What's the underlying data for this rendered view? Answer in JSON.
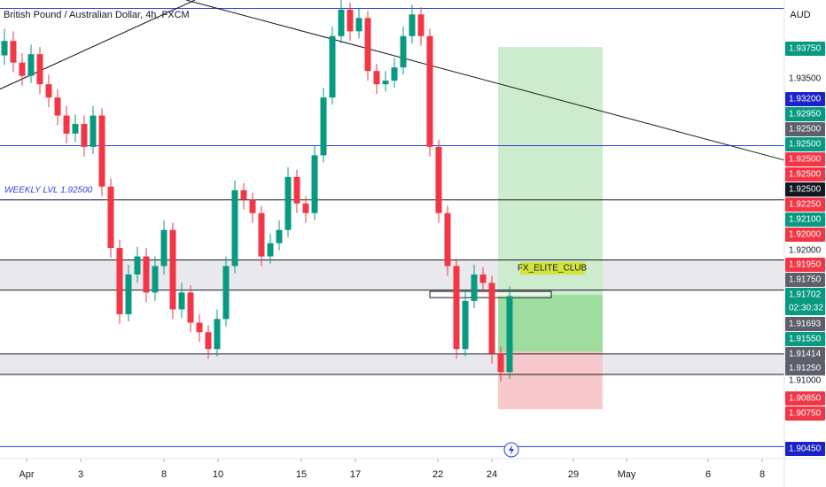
{
  "chart_data": {
    "type": "candlestick",
    "title": "British Pound / Australian Dollar, 4h, FXCM",
    "currency": "AUD",
    "up_color": "#089981",
    "down_color": "#f23645",
    "xlim": [
      -0.5,
      88
    ],
    "ylim": [
      1.9035,
      1.9416
    ],
    "xticks": [
      {
        "value": 2.5,
        "label": "Apr"
      },
      {
        "value": 8.6,
        "label": "3"
      },
      {
        "value": 18,
        "label": "8"
      },
      {
        "value": 24.1,
        "label": "10"
      },
      {
        "value": 33.5,
        "label": "15"
      },
      {
        "value": 39.6,
        "label": "17"
      },
      {
        "value": 48.9,
        "label": "22"
      },
      {
        "value": 55,
        "label": "24"
      },
      {
        "value": 64.2,
        "label": "29"
      },
      {
        "value": 70.2,
        "label": "May"
      },
      {
        "value": 79.4,
        "label": "6"
      },
      {
        "value": 85.5,
        "label": "8"
      }
    ],
    "candles": [
      [
        1.937,
        1.9392,
        1.9362,
        1.9382
      ],
      [
        1.9382,
        1.939,
        1.9356,
        1.9364
      ],
      [
        1.9364,
        1.9372,
        1.9345,
        1.9353
      ],
      [
        1.9353,
        1.9379,
        1.9347,
        1.9371
      ],
      [
        1.9371,
        1.9377,
        1.9338,
        1.9346
      ],
      [
        1.9346,
        1.9354,
        1.9327,
        1.9335
      ],
      [
        1.9335,
        1.9342,
        1.9312,
        1.932
      ],
      [
        1.932,
        1.9328,
        1.9297,
        1.9305
      ],
      [
        1.9305,
        1.9321,
        1.9298,
        1.9313
      ],
      [
        1.9313,
        1.932,
        1.9286,
        1.9294
      ],
      [
        1.9294,
        1.9328,
        1.9288,
        1.932
      ],
      [
        1.932,
        1.9326,
        1.9253,
        1.9261
      ],
      [
        1.9261,
        1.9268,
        1.9202,
        1.921
      ],
      [
        1.921,
        1.9217,
        1.9147,
        1.9155
      ],
      [
        1.9155,
        1.9196,
        1.9149,
        1.9188
      ],
      [
        1.9188,
        1.9211,
        1.9181,
        1.9203
      ],
      [
        1.9203,
        1.921,
        1.9165,
        1.9173
      ],
      [
        1.9173,
        1.9203,
        1.9166,
        1.9195
      ],
      [
        1.9195,
        1.9233,
        1.9188,
        1.9225
      ],
      [
        1.9225,
        1.9231,
        1.9151,
        1.9159
      ],
      [
        1.9159,
        1.9181,
        1.9152,
        1.9173
      ],
      [
        1.9173,
        1.9179,
        1.914,
        1.9148
      ],
      [
        1.9148,
        1.9155,
        1.9132,
        1.914
      ],
      [
        1.914,
        1.9146,
        1.9118,
        1.9126
      ],
      [
        1.9126,
        1.9159,
        1.912,
        1.9151
      ],
      [
        1.9151,
        1.9203,
        1.9145,
        1.9195
      ],
      [
        1.9195,
        1.9266,
        1.9189,
        1.9258
      ],
      [
        1.9258,
        1.9264,
        1.9242,
        1.925
      ],
      [
        1.925,
        1.9256,
        1.9231,
        1.9239
      ],
      [
        1.9239,
        1.9245,
        1.9195,
        1.9203
      ],
      [
        1.9203,
        1.9222,
        1.9197,
        1.9214
      ],
      [
        1.9214,
        1.9233,
        1.9208,
        1.9225
      ],
      [
        1.9225,
        1.9277,
        1.9219,
        1.9269
      ],
      [
        1.9269,
        1.9275,
        1.9239,
        1.9247
      ],
      [
        1.9247,
        1.9253,
        1.9231,
        1.9239
      ],
      [
        1.9239,
        1.9295,
        1.9233,
        1.9287
      ],
      [
        1.9287,
        1.9343,
        1.9281,
        1.9335
      ],
      [
        1.9335,
        1.9394,
        1.9329,
        1.9386
      ],
      [
        1.9386,
        1.9416,
        1.938,
        1.9408
      ],
      [
        1.9408,
        1.9414,
        1.9382,
        1.939
      ],
      [
        1.939,
        1.9409,
        1.9384,
        1.9401
      ],
      [
        1.9401,
        1.9407,
        1.9349,
        1.9357
      ],
      [
        1.9357,
        1.9363,
        1.9338,
        1.9346
      ],
      [
        1.9346,
        1.9357,
        1.934,
        1.9349
      ],
      [
        1.9349,
        1.9368,
        1.9343,
        1.936
      ],
      [
        1.936,
        1.9394,
        1.9354,
        1.9386
      ],
      [
        1.9386,
        1.9412,
        1.938,
        1.9404
      ],
      [
        1.9404,
        1.941,
        1.9378,
        1.9386
      ],
      [
        1.9386,
        1.9392,
        1.9286,
        1.9294
      ],
      [
        1.9294,
        1.93,
        1.9231,
        1.9239
      ],
      [
        1.9239,
        1.9245,
        1.9187,
        1.9195
      ],
      [
        1.9195,
        1.9201,
        1.9118,
        1.9126
      ],
      [
        1.9126,
        1.9174,
        1.912,
        1.9166
      ],
      [
        1.9166,
        1.9196,
        1.916,
        1.9188
      ],
      [
        1.9188,
        1.9194,
        1.9173,
        1.9181
      ],
      [
        1.9181,
        1.9187,
        1.9114,
        1.9122
      ],
      [
        1.9122,
        1.9128,
        1.9099,
        1.9107
      ],
      [
        1.9107,
        1.9178,
        1.9101,
        1.917
      ]
    ],
    "levels": [
      {
        "value": 1.9409,
        "color": "#2f3ee0"
      },
      {
        "value": 1.9295,
        "color": "#2f3ee0"
      },
      {
        "value": 1.925,
        "color": "#131722"
      },
      {
        "value": 1.92,
        "color": "#131722"
      },
      {
        "value": 1.9175,
        "color": "#131722"
      },
      {
        "value": 1.9122,
        "color": "#131722"
      },
      {
        "value": 1.9105,
        "color": "#131722"
      },
      {
        "value": 1.9045,
        "color": "#2f3ee0"
      }
    ],
    "zones": [
      [
        1.92,
        1.9175
      ],
      [
        1.9122,
        1.9105
      ]
    ],
    "trendlines": [
      [
        [
          -0.5,
          1.9342
        ],
        [
          21.5,
          1.9416
        ]
      ],
      [
        [
          20.5,
          1.9416
        ],
        [
          88,
          1.9283
        ]
      ]
    ],
    "position": {
      "start": 55.7,
      "end": 67.5,
      "entry": 1.9171,
      "target": 1.9377,
      "filled_to": 1.9124,
      "stop": 1.9076
    },
    "annotation": "WEEKLY LVL 1.92500",
    "tag": "FX_ELITE_CLUB",
    "price_labels": [
      {
        "text": "1.93750",
        "color": "#089981"
      },
      {
        "text": "1.93500",
        "color": null
      },
      {
        "text": "1.93200",
        "color": "#1c22c9"
      },
      {
        "text": "1.92950",
        "color": "#089981"
      },
      {
        "text": "1.92500",
        "color": "#5d606b"
      },
      {
        "text": "1.92500",
        "color": "#089981"
      },
      {
        "text": "1.92500",
        "color": "#f23645"
      },
      {
        "text": "1.92500",
        "color": "#f23645"
      },
      {
        "text": "1.92500",
        "color": "#131722"
      },
      {
        "text": "1.92250",
        "color": "#f23645"
      },
      {
        "text": "1.92100",
        "color": "#089981"
      },
      {
        "text": "1.92000",
        "color": "#f23645"
      },
      {
        "text": "1.92000",
        "color": null
      },
      {
        "text": "1.91950",
        "color": "#f23645"
      },
      {
        "text": "1.91750",
        "color": "#5d606b"
      },
      {
        "text": "1.91702",
        "color": "#089981"
      },
      {
        "text": "02:30:32",
        "color": "#089981"
      },
      {
        "text": "1.91693",
        "color": "#5d606b"
      },
      {
        "text": "1.91550",
        "color": "#089981"
      },
      {
        "text": "1.91414",
        "color": "#5d606b"
      },
      {
        "text": "1.91250",
        "color": "#5d606b"
      },
      {
        "text": "1.91000",
        "color": null
      },
      {
        "text": "1.90850",
        "color": "#f23645"
      },
      {
        "text": "1.90750",
        "color": "#f23645"
      },
      {
        "text": "1.90450",
        "color": "#1c22c9"
      }
    ]
  }
}
